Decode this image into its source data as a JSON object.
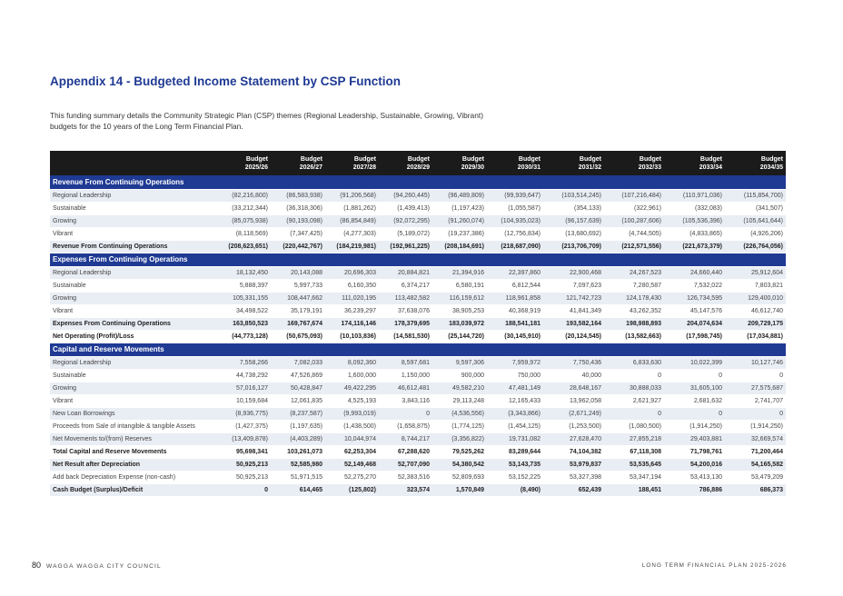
{
  "title": "Appendix 14 - Budgeted Income Statement by CSP Function",
  "intro": "This funding summary details the Community Strategic Plan (CSP) themes (Regional Leadership, Sustainable, Growing, Vibrant) budgets for the 10 years of the Long Term Financial Plan.",
  "columns": [
    {
      "l1": "Budget",
      "l2": "2025/26"
    },
    {
      "l1": "Budget",
      "l2": "2026/27"
    },
    {
      "l1": "Budget",
      "l2": "2027/28"
    },
    {
      "l1": "Budget",
      "l2": "2028/29"
    },
    {
      "l1": "Budget",
      "l2": "2029/30"
    },
    {
      "l1": "Budget",
      "l2": "2030/31"
    },
    {
      "l1": "Budget",
      "l2": "2031/32"
    },
    {
      "l1": "Budget",
      "l2": "2032/33"
    },
    {
      "l1": "Budget",
      "l2": "2033/34"
    },
    {
      "l1": "Budget",
      "l2": "2034/35"
    }
  ],
  "rows": [
    {
      "type": "section",
      "label": "Revenue From Continuing Operations"
    },
    {
      "label": "Regional Leadership",
      "values": [
        "(82,216,800)",
        "(86,583,938)",
        "(91,206,568)",
        "(94,260,445)",
        "(96,489,809)",
        "(99,939,647)",
        "(103,514,245)",
        "(107,216,484)",
        "(110,971,036)",
        "(115,854,700)"
      ]
    },
    {
      "label": "Sustainable",
      "values": [
        "(33,212,344)",
        "(36,318,306)",
        "(1,881,262)",
        "(1,439,413)",
        "(1,197,423)",
        "(1,055,587)",
        "(354,133)",
        "(322,961)",
        "(332,083)",
        "(341,507)"
      ]
    },
    {
      "label": "Growing",
      "values": [
        "(85,075,938)",
        "(90,193,098)",
        "(86,854,849)",
        "(92,072,295)",
        "(91,260,074)",
        "(104,935,023)",
        "(96,157,639)",
        "(100,287,606)",
        "(105,536,396)",
        "(105,641,644)"
      ]
    },
    {
      "label": "Vibrant",
      "values": [
        "(8,118,569)",
        "(7,347,425)",
        "(4,277,303)",
        "(5,189,072)",
        "(19,237,386)",
        "(12,756,834)",
        "(13,680,692)",
        "(4,744,505)",
        "(4,833,865)",
        "(4,926,206)"
      ]
    },
    {
      "label": "Revenue From Continuing Operations",
      "bold": true,
      "values": [
        "(208,623,651)",
        "(220,442,767)",
        "(184,219,981)",
        "(192,961,225)",
        "(208,184,691)",
        "(218,687,090)",
        "(213,706,709)",
        "(212,571,556)",
        "(221,673,379)",
        "(226,764,056)"
      ]
    },
    {
      "type": "section",
      "label": "Expenses From Continuing Operations"
    },
    {
      "label": "Regional Leadership",
      "values": [
        "18,132,450",
        "20,143,088",
        "20,696,303",
        "20,884,821",
        "21,394,916",
        "22,397,860",
        "22,900,468",
        "24,267,523",
        "24,660,440",
        "25,912,604"
      ]
    },
    {
      "label": "Sustainable",
      "values": [
        "5,888,397",
        "5,997,733",
        "6,160,350",
        "6,374,217",
        "6,580,191",
        "6,812,544",
        "7,097,623",
        "7,280,587",
        "7,532,022",
        "7,803,821"
      ]
    },
    {
      "label": "Growing",
      "values": [
        "105,331,155",
        "108,447,662",
        "111,020,195",
        "113,482,582",
        "116,159,612",
        "118,961,858",
        "121,742,723",
        "124,178,430",
        "126,734,595",
        "129,400,010"
      ]
    },
    {
      "label": "Vibrant",
      "values": [
        "34,498,522",
        "35,179,191",
        "36,239,297",
        "37,638,076",
        "38,905,253",
        "40,368,919",
        "41,841,349",
        "43,262,352",
        "45,147,576",
        "46,612,740"
      ]
    },
    {
      "label": "Expenses From Continuing Operations",
      "bold": true,
      "values": [
        "163,850,523",
        "169,767,674",
        "174,116,146",
        "178,379,695",
        "183,039,972",
        "188,541,181",
        "193,582,164",
        "198,988,893",
        "204,074,634",
        "209,729,175"
      ]
    },
    {
      "label": "Net Operating (Profit)/Loss",
      "bold": true,
      "values": [
        "(44,773,128)",
        "(50,675,093)",
        "(10,103,836)",
        "(14,581,530)",
        "(25,144,720)",
        "(30,145,910)",
        "(20,124,545)",
        "(13,582,663)",
        "(17,598,745)",
        "(17,034,881)"
      ]
    },
    {
      "type": "section",
      "label": "Capital and Reserve Movements"
    },
    {
      "label": "Regional Leadership",
      "values": [
        "7,558,266",
        "7,082,033",
        "8,092,360",
        "8,597,681",
        "9,597,306",
        "7,959,972",
        "7,750,436",
        "6,833,630",
        "10,022,399",
        "10,127,746"
      ]
    },
    {
      "label": "Sustainable",
      "values": [
        "44,738,292",
        "47,526,869",
        "1,600,000",
        "1,150,000",
        "900,000",
        "750,000",
        "40,000",
        "0",
        "0",
        "0"
      ]
    },
    {
      "label": "Growing",
      "values": [
        "57,016,127",
        "50,428,847",
        "49,422,295",
        "46,612,481",
        "49,582,210",
        "47,481,149",
        "28,648,167",
        "30,888,033",
        "31,605,100",
        "27,575,687"
      ]
    },
    {
      "label": "Vibrant",
      "values": [
        "10,159,684",
        "12,061,835",
        "4,525,193",
        "3,843,116",
        "29,113,248",
        "12,165,433",
        "13,962,058",
        "2,621,927",
        "2,681,632",
        "2,741,707"
      ]
    },
    {
      "label": "New Loan Borrowings",
      "values": [
        "(8,936,775)",
        "(8,237,587)",
        "(9,993,019)",
        "0",
        "(4,536,556)",
        "(3,343,866)",
        "(2,671,249)",
        "0",
        "0",
        "0"
      ]
    },
    {
      "label": "Proceeds from Sale of intangible & tangible Assets",
      "values": [
        "(1,427,375)",
        "(1,197,635)",
        "(1,438,500)",
        "(1,658,875)",
        "(1,774,125)",
        "(1,454,125)",
        "(1,253,500)",
        "(1,080,500)",
        "(1,914,250)",
        "(1,914,250)"
      ]
    },
    {
      "label": "Net Movements to/(from) Reserves",
      "values": [
        "(13,409,878)",
        "(4,403,289)",
        "10,044,974",
        "8,744,217",
        "(3,356,822)",
        "19,731,082",
        "27,628,470",
        "27,855,218",
        "29,403,881",
        "32,669,574"
      ]
    },
    {
      "label": "Total Capital and Reserve Movements",
      "bold": true,
      "values": [
        "95,698,341",
        "103,261,073",
        "62,253,304",
        "67,288,620",
        "79,525,262",
        "83,289,644",
        "74,104,382",
        "67,118,308",
        "71,798,761",
        "71,200,464"
      ]
    },
    {
      "label": "Net Result after Depreciation",
      "bold": true,
      "values": [
        "50,925,213",
        "52,585,980",
        "52,149,468",
        "52,707,090",
        "54,380,542",
        "53,143,735",
        "53,979,837",
        "53,535,645",
        "54,200,016",
        "54,165,582"
      ]
    },
    {
      "label": "Add back Depreciation Expense (non-cash)",
      "values": [
        "50,925,213",
        "51,971,515",
        "52,275,270",
        "52,383,516",
        "52,809,693",
        "53,152,225",
        "53,327,398",
        "53,347,194",
        "53,413,130",
        "53,479,209"
      ]
    },
    {
      "label": "Cash Budget (Surplus)/Deficit",
      "bold": true,
      "values": [
        "0",
        "614,465",
        "(125,802)",
        "323,574",
        "1,570,849",
        "(8,490)",
        "652,439",
        "188,451",
        "786,886",
        "686,373"
      ]
    }
  ],
  "footer": {
    "page_number": "80",
    "org": "WAGGA WAGGA CITY COUNCIL",
    "doc": "LONG TERM FINANCIAL PLAN 2025-2026"
  }
}
